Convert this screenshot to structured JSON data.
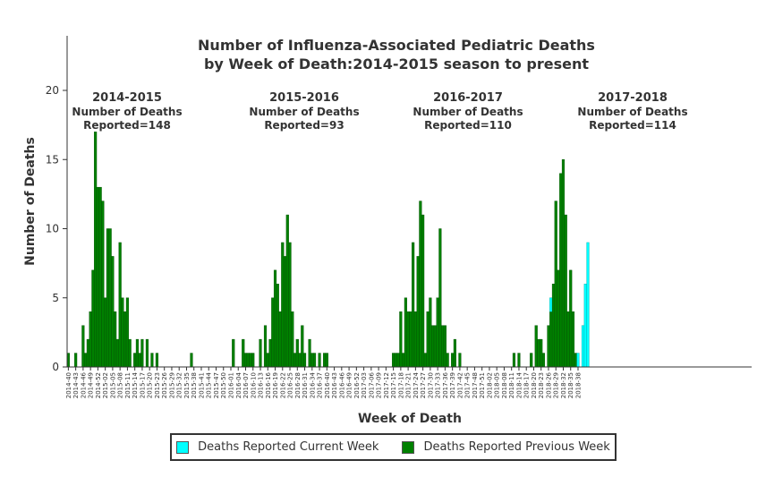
{
  "chart_data": {
    "type": "bar",
    "title": [
      "Number of Influenza-Associated Pediatric Deaths",
      "by Week of Death:2014-2015 season to present"
    ],
    "xlabel": "Week of Death",
    "ylabel": "Number of Deaths",
    "ylim": [
      0,
      20
    ],
    "yticks": [
      0,
      5,
      10,
      15,
      20
    ],
    "stacked": true,
    "grid": false,
    "legend_position": "bottom",
    "colors": {
      "current": "#00ffff",
      "previous": "#008000",
      "axis": "#333333"
    },
    "tick_labels": [
      "2014-40",
      "2014-43",
      "2014-46",
      "2014-49",
      "2014-52",
      "2015-02",
      "2015-05",
      "2015-08",
      "2015-11",
      "2015-14",
      "2015-17",
      "2015-20",
      "2015-23",
      "2015-26",
      "2015-29",
      "2015-32",
      "2015-35",
      "2015-38",
      "2015-41",
      "2015-44",
      "2015-47",
      "2015-50",
      "2016-01",
      "2016-04",
      "2016-07",
      "2016-10",
      "2016-13",
      "2016-16",
      "2016-19",
      "2016-22",
      "2016-25",
      "2016-28",
      "2016-31",
      "2016-34",
      "2016-37",
      "2016-40",
      "2016-43",
      "2016-46",
      "2016-49",
      "2016-52",
      "2017-03",
      "2017-06",
      "2017-09",
      "2017-12",
      "2017-15",
      "2017-18",
      "2017-21",
      "2017-24",
      "2017-27",
      "2017-30",
      "2017-33",
      "2017-36",
      "2017-39",
      "2017-42",
      "2017-45",
      "2017-48",
      "2017-51",
      "2018-02",
      "2018-05",
      "2018-08",
      "2018-11",
      "2018-14",
      "2018-17",
      "2018-20",
      "2018-23",
      "2018-26",
      "2018-29",
      "2018-32",
      "2018-35",
      "2018-38"
    ],
    "series": [
      {
        "name": "Deaths Reported Current Week",
        "key": "current",
        "values": [
          0,
          0,
          0,
          0,
          0,
          0,
          0,
          0,
          0,
          0,
          0,
          0,
          0,
          0,
          0,
          0,
          0,
          0,
          0,
          0,
          0,
          0,
          0,
          0,
          0,
          0,
          0,
          0,
          0,
          0,
          0,
          0,
          0,
          0,
          0,
          0,
          0,
          0,
          0,
          0,
          0,
          0,
          0,
          0,
          0,
          0,
          0,
          0,
          0,
          0,
          0,
          0,
          0,
          0,
          0,
          0,
          0,
          0,
          0,
          0,
          0,
          0,
          0,
          0,
          0,
          0,
          0,
          0,
          0,
          0,
          0,
          0,
          0,
          0,
          0,
          0,
          0,
          0,
          0,
          0,
          0,
          0,
          0,
          0,
          0,
          0,
          0,
          0,
          0,
          0,
          0,
          0,
          0,
          0,
          0,
          0,
          0,
          0,
          0,
          0,
          0,
          0,
          0,
          0,
          0,
          0,
          0,
          0,
          0,
          0,
          0,
          0,
          0,
          0,
          0,
          0,
          0,
          0,
          0,
          0,
          0,
          0,
          0,
          0,
          0,
          0,
          0,
          0,
          0,
          0,
          0,
          0,
          0,
          0,
          0,
          0,
          0,
          0,
          0,
          0,
          0,
          0,
          0,
          0,
          0,
          0,
          0,
          0,
          0,
          0,
          0,
          0,
          0,
          0,
          0,
          0,
          0,
          0,
          0,
          0,
          0,
          0,
          0,
          0,
          0,
          0,
          0,
          0,
          0,
          0,
          0,
          0,
          0,
          0,
          0,
          0,
          0,
          0,
          0,
          0,
          0,
          0,
          0,
          0,
          0,
          0,
          0,
          0,
          0,
          0,
          0,
          0,
          0,
          0,
          0,
          0,
          1,
          0,
          0,
          0,
          0,
          0,
          0,
          0,
          0,
          0,
          0,
          1,
          0,
          3,
          6,
          9,
          0,
          0,
          0,
          0,
          0,
          0,
          0,
          0,
          0,
          0,
          0,
          0,
          0,
          0,
          0,
          0,
          0,
          0,
          0,
          0,
          0,
          0,
          0,
          0,
          0,
          0,
          0,
          0,
          0,
          0,
          0,
          0,
          0,
          0,
          0,
          0,
          0,
          0,
          0,
          0,
          0,
          0,
          0,
          0,
          0,
          0,
          0,
          0,
          0,
          0,
          0,
          0,
          0,
          0,
          0,
          0,
          0,
          0,
          0,
          0,
          0,
          0,
          0,
          0,
          0,
          0
        ]
      },
      {
        "name": "Deaths Reported Previous Week",
        "key": "previous",
        "values": [
          1,
          0,
          0,
          1,
          0,
          0,
          3,
          1,
          2,
          4,
          7,
          17,
          13,
          13,
          12,
          5,
          10,
          10,
          8,
          4,
          2,
          9,
          5,
          4,
          5,
          2,
          0,
          1,
          2,
          1,
          2,
          0,
          2,
          0,
          1,
          0,
          1,
          0,
          0,
          0,
          0,
          0,
          0,
          0,
          0,
          0,
          0,
          0,
          0,
          0,
          1,
          0,
          0,
          0,
          0,
          0,
          0,
          0,
          0,
          0,
          0,
          0,
          0,
          0,
          0,
          0,
          0,
          2,
          0,
          0,
          0,
          2,
          1,
          1,
          1,
          1,
          0,
          0,
          2,
          0,
          3,
          1,
          2,
          5,
          7,
          6,
          4,
          9,
          8,
          11,
          9,
          4,
          1,
          2,
          1,
          3,
          1,
          0,
          2,
          1,
          1,
          0,
          1,
          0,
          1,
          1,
          0,
          0,
          0,
          0,
          0,
          0,
          0,
          0,
          0,
          0,
          0,
          0,
          0,
          0,
          0,
          0,
          0,
          0,
          0,
          0,
          0,
          0,
          0,
          0,
          0,
          0,
          1,
          1,
          1,
          4,
          1,
          5,
          4,
          4,
          9,
          4,
          8,
          12,
          11,
          1,
          4,
          5,
          3,
          3,
          5,
          10,
          3,
          3,
          1,
          0,
          1,
          2,
          0,
          1,
          0,
          0,
          0,
          0,
          0,
          0,
          0,
          0,
          0,
          0,
          0,
          0,
          0,
          0,
          0,
          0,
          0,
          0,
          0,
          0,
          0,
          1,
          0,
          1,
          0,
          0,
          0,
          0,
          1,
          0,
          3,
          2,
          2,
          1,
          0,
          3,
          4,
          6,
          12,
          7,
          14,
          15,
          11,
          4,
          7,
          4,
          1,
          0,
          0,
          0,
          0,
          0,
          0,
          0,
          0,
          0,
          0,
          0,
          0,
          0,
          0,
          0,
          0,
          0,
          0,
          0,
          0,
          0,
          0,
          0,
          0,
          0,
          0,
          0,
          0,
          0,
          0,
          0,
          0,
          0,
          0,
          0,
          0,
          0,
          0,
          0,
          0,
          0,
          0,
          0,
          0,
          0,
          0,
          0,
          0,
          0,
          0,
          0,
          0,
          0,
          0,
          0,
          0,
          0,
          0,
          0,
          0,
          0,
          0,
          0,
          0,
          0
        ]
      }
    ],
    "annotations": [
      {
        "season": "2014-2015",
        "line1": "Number of Deaths",
        "line2": "Reported=148"
      },
      {
        "season": "2015-2016",
        "line1": "Number of Deaths",
        "line2": "Reported=93"
      },
      {
        "season": "2016-2017",
        "line1": "Number of Deaths",
        "line2": "Reported=110"
      },
      {
        "season": "2017-2018",
        "line1": "Number of Deaths",
        "line2": "Reported=114"
      }
    ]
  },
  "legend": {
    "current_label": "Deaths Reported Current Week",
    "previous_label": "Deaths Reported Previous Week"
  }
}
